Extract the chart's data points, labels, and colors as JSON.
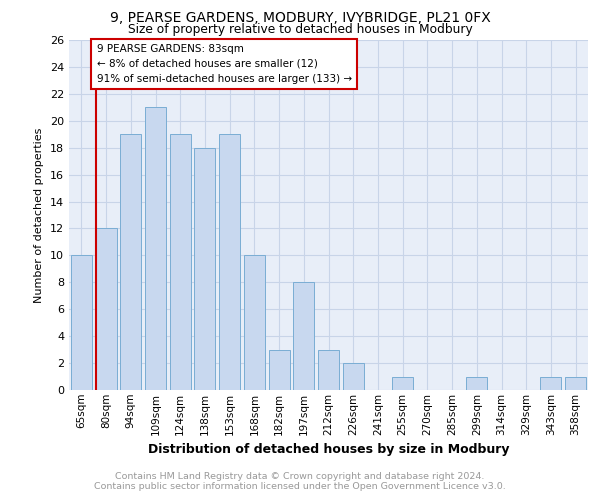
{
  "title1": "9, PEARSE GARDENS, MODBURY, IVYBRIDGE, PL21 0FX",
  "title2": "Size of property relative to detached houses in Modbury",
  "xlabel": "Distribution of detached houses by size in Modbury",
  "ylabel": "Number of detached properties",
  "categories": [
    "65sqm",
    "80sqm",
    "94sqm",
    "109sqm",
    "124sqm",
    "138sqm",
    "153sqm",
    "168sqm",
    "182sqm",
    "197sqm",
    "212sqm",
    "226sqm",
    "241sqm",
    "255sqm",
    "270sqm",
    "285sqm",
    "299sqm",
    "314sqm",
    "329sqm",
    "343sqm",
    "358sqm"
  ],
  "values": [
    10,
    12,
    19,
    21,
    19,
    18,
    19,
    10,
    3,
    8,
    3,
    2,
    0,
    1,
    0,
    0,
    1,
    0,
    0,
    1,
    1
  ],
  "bar_color": "#c8d8ef",
  "bar_edge_color": "#7aadd4",
  "vline_color": "#cc0000",
  "vline_x": 0.575,
  "box_text_line1": "9 PEARSE GARDENS: 83sqm",
  "box_text_line2": "← 8% of detached houses are smaller (12)",
  "box_text_line3": "91% of semi-detached houses are larger (133) →",
  "box_color": "#cc0000",
  "box_fill": "#ffffff",
  "ylim": [
    0,
    26
  ],
  "yticks": [
    0,
    2,
    4,
    6,
    8,
    10,
    12,
    14,
    16,
    18,
    20,
    22,
    24,
    26
  ],
  "footnote1": "Contains HM Land Registry data © Crown copyright and database right 2024.",
  "footnote2": "Contains public sector information licensed under the Open Government Licence v3.0.",
  "grid_color": "#c8d4e8",
  "bg_color": "#e8eef8"
}
